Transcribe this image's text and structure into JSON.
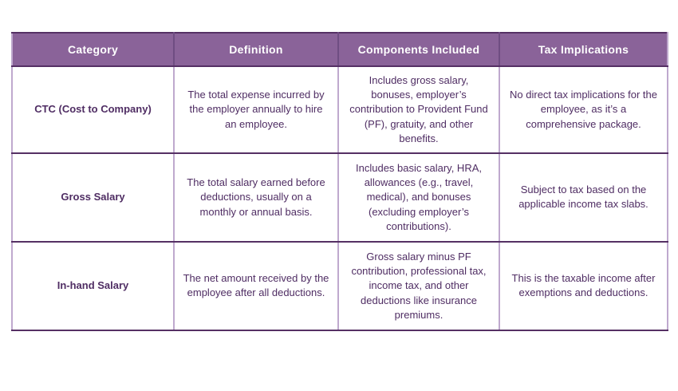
{
  "colors": {
    "header_bg": "#8a6399",
    "header_text": "#ffffff",
    "header_divider": "#6f4d82",
    "body_text": "#4f2d63",
    "border_dark": "#553064",
    "border_light": "#bfa9ce",
    "page_bg": "#ffffff"
  },
  "table": {
    "headers": [
      "Category",
      "Definition",
      "Components Included",
      "Tax Implications"
    ],
    "rows": [
      {
        "category": "CTC (Cost to Company)",
        "definition": "The total expense incurred by the employer annually to hire an employee.",
        "components": "Includes gross salary, bonuses, employer’s contribution to Provident Fund (PF), gratuity, and other benefits.",
        "tax": "No direct tax implications for the employee, as it’s a comprehensive package."
      },
      {
        "category": "Gross Salary",
        "definition": "The total salary earned before deductions, usually on a monthly or annual basis.",
        "components": "Includes basic salary, HRA, allowances (e.g., travel, medical), and bonuses (excluding employer’s contributions).",
        "tax": "Subject to tax based on the applicable income tax slabs."
      },
      {
        "category": "In-hand Salary",
        "definition": "The net amount received by the employee after all deductions.",
        "components": "Gross salary minus PF contribution, professional tax, income tax, and other deductions like insurance premiums.",
        "tax": "This is the taxable income after exemptions and deductions."
      }
    ]
  }
}
